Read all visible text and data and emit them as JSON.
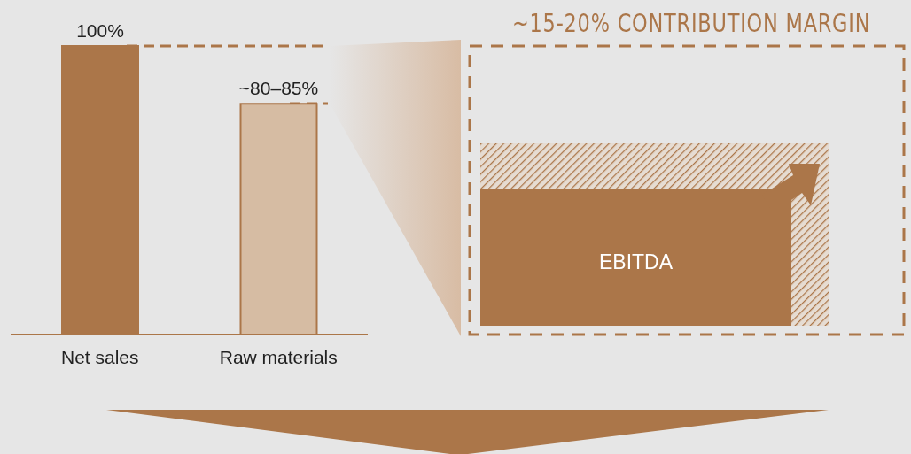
{
  "chart_data": {
    "type": "bar",
    "categories": [
      "Net sales",
      "Raw materials"
    ],
    "values": [
      100,
      80
    ],
    "colors": [
      "#ab7649",
      "#d6bca3"
    ],
    "value_labels": [
      "100%",
      "~80–85%"
    ],
    "annotations": [
      "~15-20% CONTRIBUTION MARGIN",
      "EBITDA"
    ]
  }
}
